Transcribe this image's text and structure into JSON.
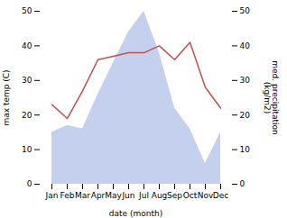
{
  "chart_data": {
    "type": "line",
    "xlabel": "date (month)",
    "ylabel": "max temp (C)",
    "y2label": "med. precipitation\n(kg/m2)",
    "categories": [
      "Jan",
      "Feb",
      "Mar",
      "Apr",
      "May",
      "Jun",
      "Jul",
      "Aug",
      "Sep",
      "Oct",
      "Nov",
      "Dec"
    ],
    "series": [
      {
        "type": "area",
        "axis": "y2",
        "color": "#c5d0ee",
        "values": [
          15,
          17,
          16,
          26,
          35,
          44,
          50,
          38,
          22,
          16,
          6,
          15
        ]
      },
      {
        "type": "line",
        "color": "#c0504d",
        "values": [
          23,
          19,
          27,
          36,
          37,
          38,
          38,
          40,
          36,
          41,
          28,
          22
        ]
      }
    ],
    "ylim": [
      0,
      50
    ],
    "yticks": [
      0,
      10,
      20,
      30,
      40,
      50
    ],
    "y2lim": [
      0,
      50
    ],
    "y2ticks": [
      0,
      10,
      20,
      30,
      40,
      50
    ],
    "grid": false
  }
}
